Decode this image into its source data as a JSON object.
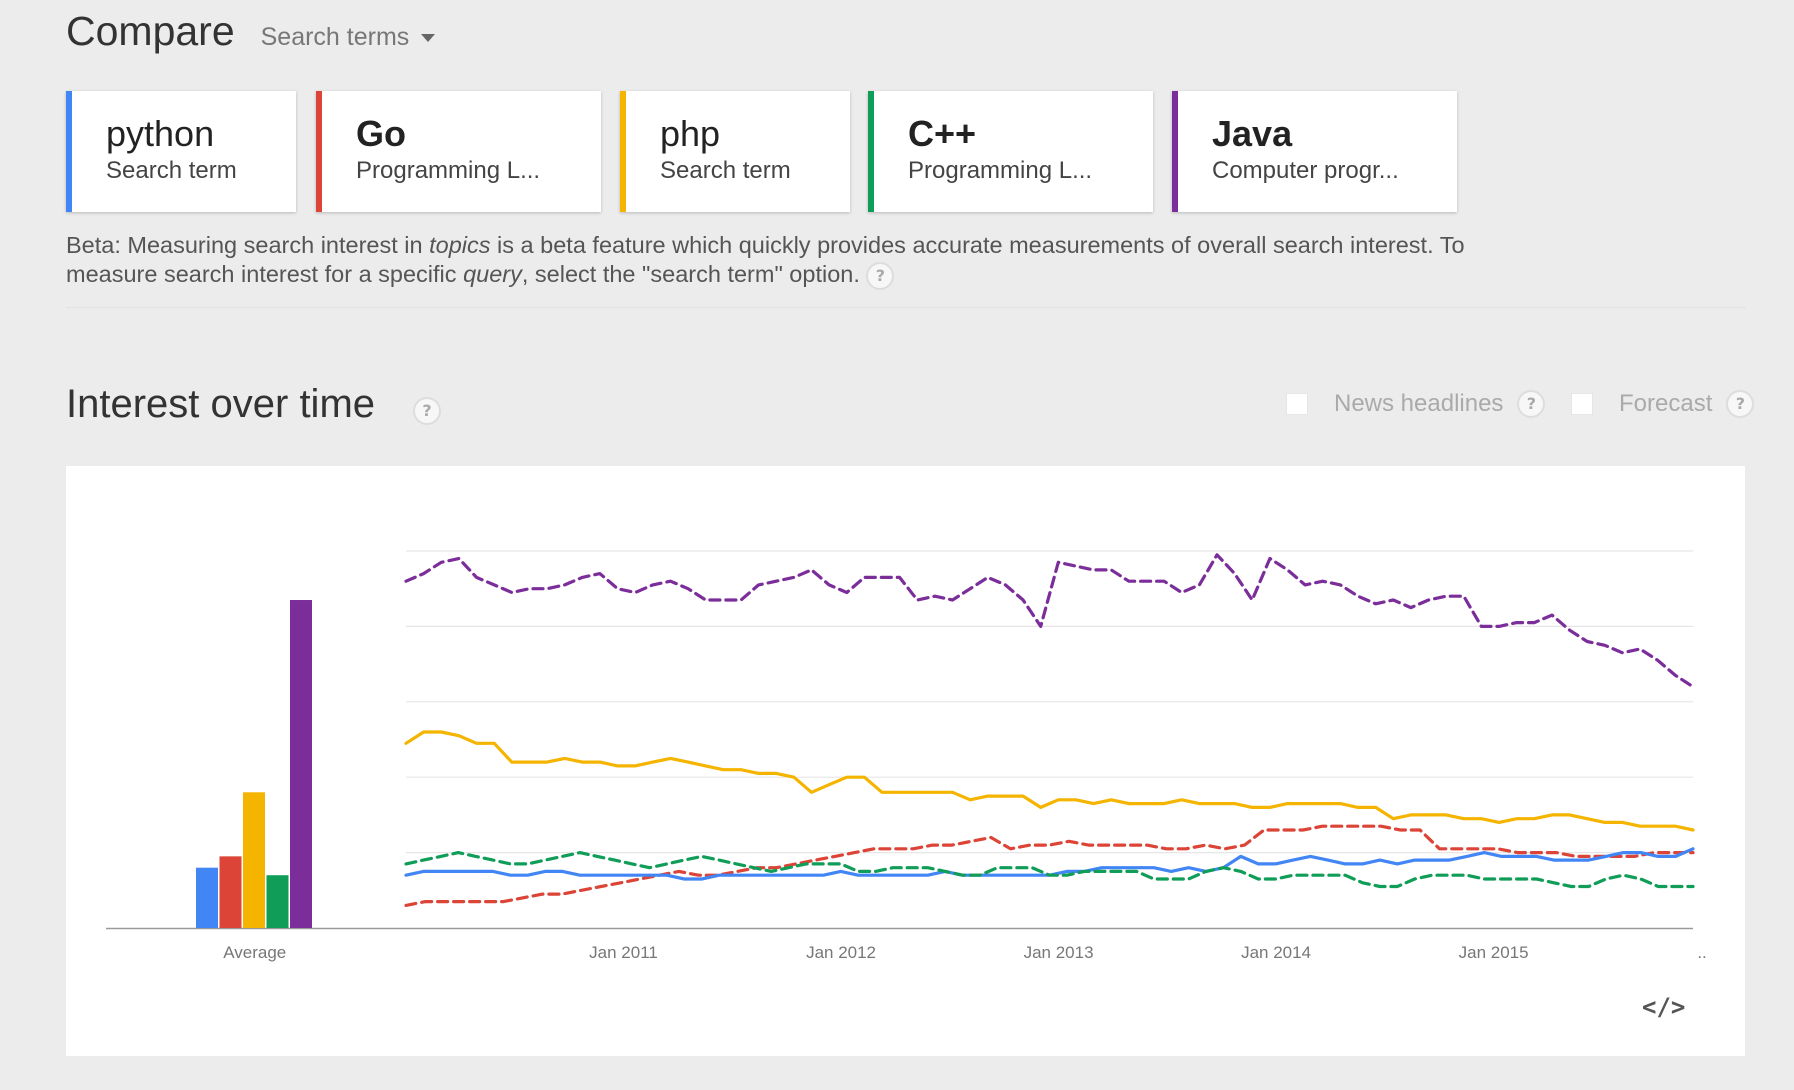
{
  "header": {
    "title": "Compare",
    "search_type": "Search terms"
  },
  "terms": [
    {
      "name": "python",
      "type": "Search term",
      "color": "#4285f4",
      "bold": false
    },
    {
      "name": "Go",
      "type": "Programming L...",
      "color": "#db4437",
      "bold": true
    },
    {
      "name": "php",
      "type": "Search term",
      "color": "#f4b400",
      "bold": false
    },
    {
      "name": "C++",
      "type": "Programming L...",
      "color": "#0f9d58",
      "bold": true
    },
    {
      "name": "Java",
      "type": "Computer progr...",
      "color": "#7b2e9a",
      "bold": true
    }
  ],
  "beta_note": {
    "prefix": "Beta: Measuring search interest in ",
    "topics": "topics",
    "middle": " is a beta feature which quickly provides accurate measurements of overall search interest. To measure search interest for a specific ",
    "query": "query",
    "suffix": ", select the \"search term\" option. "
  },
  "help_glyph": "?",
  "interest_section": {
    "title": "Interest over time",
    "news_headlines": "News headlines",
    "forecast": "Forecast"
  },
  "chart_data": {
    "type": "line",
    "x_labels": [
      "Jan 2011",
      "Jan 2012",
      "Jan 2013",
      "Jan 2014",
      "Jan 2015",
      ".."
    ],
    "x_label_months": [
      12,
      24,
      36,
      48,
      60,
      71.5
    ],
    "average_label": "Average",
    "ylim": [
      0,
      100
    ],
    "grid": true,
    "averages": [
      {
        "name": "python",
        "value": 16,
        "color": "#4285f4"
      },
      {
        "name": "Go",
        "value": 19,
        "color": "#db4437"
      },
      {
        "name": "php",
        "value": 36,
        "color": "#f4b400"
      },
      {
        "name": "C++",
        "value": 14,
        "color": "#0f9d58"
      },
      {
        "name": "Java",
        "value": 87,
        "color": "#7b2e9a"
      }
    ],
    "series": [
      {
        "name": "Java",
        "color": "#7b2e9a",
        "dashed": true,
        "values": [
          92,
          94,
          97,
          98,
          93,
          91,
          89,
          90,
          90,
          91,
          93,
          94,
          90,
          89,
          91,
          92,
          90,
          87,
          87,
          87,
          91,
          92,
          93,
          95,
          91,
          89,
          93,
          93,
          93,
          87,
          88,
          87,
          90,
          93,
          91,
          87,
          80,
          97,
          96,
          95,
          95,
          92,
          92,
          92,
          89,
          91,
          99,
          94,
          87,
          98,
          95,
          91,
          92,
          91,
          88,
          86,
          87,
          85,
          87,
          88,
          88,
          80,
          80,
          81,
          81,
          83,
          79,
          76,
          75,
          73,
          74,
          71,
          67,
          64
        ]
      },
      {
        "name": "php",
        "color": "#f4b400",
        "dashed": false,
        "values": [
          49,
          52,
          52,
          51,
          49,
          49,
          44,
          44,
          44,
          45,
          44,
          44,
          43,
          43,
          44,
          45,
          44,
          43,
          42,
          42,
          41,
          41,
          40,
          36,
          38,
          40,
          40,
          36,
          36,
          36,
          36,
          36,
          34,
          35,
          35,
          35,
          32,
          34,
          34,
          33,
          34,
          33,
          33,
          33,
          34,
          33,
          33,
          33,
          32,
          32,
          33,
          33,
          33,
          33,
          32,
          32,
          29,
          30,
          30,
          30,
          29,
          29,
          28,
          29,
          29,
          30,
          30,
          29,
          28,
          28,
          27,
          27,
          27,
          26
        ]
      },
      {
        "name": "Go",
        "color": "#db4437",
        "dashed": true,
        "values": [
          6,
          7,
          7,
          7,
          7,
          7,
          8,
          9,
          9,
          10,
          11,
          12,
          13,
          14,
          15,
          14,
          14,
          15,
          16,
          16,
          17,
          18,
          19,
          20,
          21,
          21,
          21,
          22,
          22,
          23,
          24,
          21,
          22,
          22,
          23,
          22,
          22,
          22,
          22,
          21,
          21,
          22,
          21,
          22,
          26,
          26,
          26,
          27,
          27,
          27,
          27,
          26,
          26,
          21,
          21,
          21,
          21,
          20,
          20,
          20,
          19,
          19,
          19,
          19,
          20,
          20,
          20
        ]
      },
      {
        "name": "python",
        "color": "#4285f4",
        "dashed": false,
        "values": [
          14,
          15,
          15,
          15,
          15,
          15,
          14,
          14,
          15,
          15,
          14,
          14,
          14,
          14,
          14,
          14,
          13,
          13,
          14,
          14,
          14,
          14,
          14,
          14,
          14,
          15,
          14,
          14,
          14,
          14,
          14,
          15,
          14,
          14,
          14,
          14,
          14,
          14,
          15,
          15,
          16,
          16,
          16,
          16,
          15,
          16,
          15,
          16,
          19,
          17,
          17,
          18,
          19,
          18,
          17,
          17,
          18,
          17,
          18,
          18,
          18,
          19,
          20,
          19,
          19,
          19,
          18,
          18,
          18,
          19,
          20,
          20,
          19,
          19,
          21
        ]
      },
      {
        "name": "C++",
        "color": "#0f9d58",
        "dashed": true,
        "values": [
          17,
          18,
          19,
          20,
          19,
          18,
          17,
          17,
          18,
          19,
          20,
          19,
          18,
          17,
          16,
          17,
          18,
          19,
          18,
          17,
          16,
          15,
          16,
          17,
          17,
          17,
          15,
          15,
          16,
          16,
          16,
          15,
          14,
          14,
          16,
          16,
          16,
          14,
          14,
          15,
          15,
          15,
          15,
          13,
          13,
          13,
          15,
          16,
          15,
          13,
          13,
          14,
          14,
          14,
          14,
          12,
          11,
          11,
          13,
          14,
          14,
          14,
          13,
          13,
          13,
          13,
          12,
          11,
          11,
          13,
          14,
          13,
          11,
          11,
          11
        ]
      }
    ]
  }
}
